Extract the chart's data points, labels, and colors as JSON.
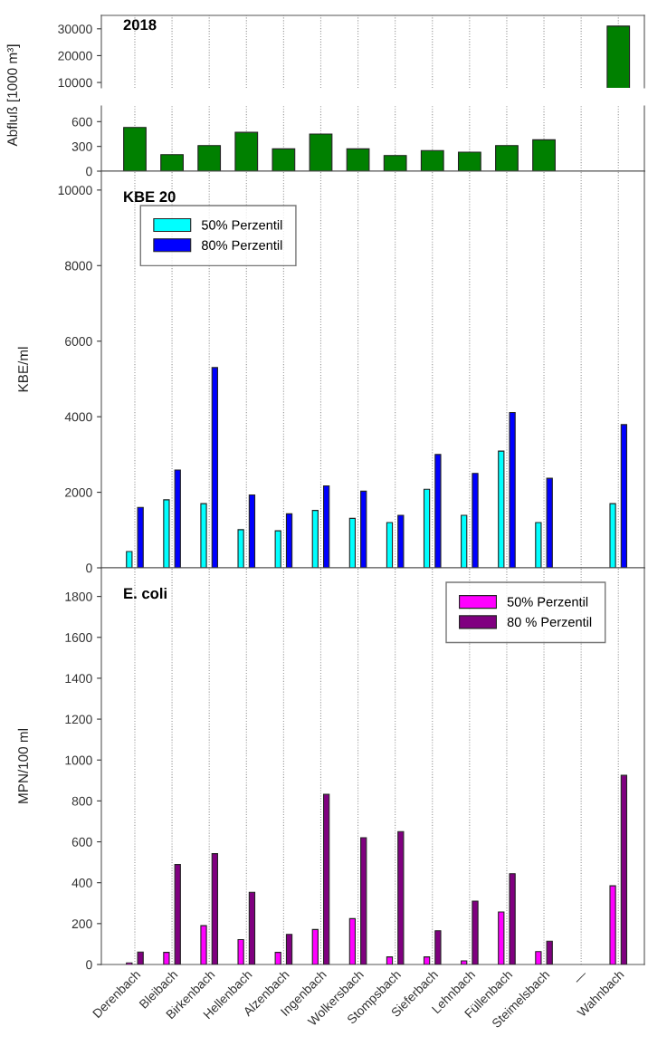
{
  "chart_data": [
    {
      "type": "bar",
      "title": "2018",
      "ylabel": "Abfluß [1000 m³]",
      "categories": [
        null,
        null,
        null,
        null,
        null,
        null,
        null,
        null,
        null,
        null,
        null,
        null,
        null,
        null
      ],
      "series": [
        {
          "color": "#008000",
          "values": [
            null,
            null,
            null,
            null,
            null,
            null,
            null,
            null,
            null,
            null,
            null,
            null,
            null,
            31000
          ]
        }
      ],
      "ylim": [
        8000,
        35000
      ],
      "yticks": [
        10000,
        20000,
        30000
      ],
      "grid": "x",
      "tick_labels": "y",
      "legend": false
    },
    {
      "type": "bar",
      "categories": [
        null,
        null,
        null,
        null,
        null,
        null,
        null,
        null,
        null,
        null,
        null,
        null,
        null,
        null
      ],
      "series": [
        {
          "color": "#008000",
          "values": [
            530,
            200,
            310,
            470,
            270,
            450,
            270,
            190,
            250,
            230,
            310,
            380,
            null,
            null
          ]
        }
      ],
      "ylim": [
        0,
        790
      ],
      "yticks": [
        0,
        300,
        600
      ],
      "grid": "x",
      "tick_labels": "y",
      "legend": false
    },
    {
      "type": "bar",
      "title": "KBE 20",
      "ylabel": "KBE/ml",
      "categories": [
        null,
        null,
        null,
        null,
        null,
        null,
        null,
        null,
        null,
        null,
        null,
        null,
        null,
        null
      ],
      "series": [
        {
          "name": "50% Perzentil",
          "color": "#00ffff",
          "values": [
            430,
            1800,
            1700,
            1010,
            980,
            1520,
            1310,
            1200,
            2080,
            1390,
            3090,
            1200,
            null,
            1700
          ]
        },
        {
          "name": "80% Perzentil",
          "color": "#0000ff",
          "values": [
            1600,
            2590,
            5300,
            1930,
            1430,
            2170,
            2030,
            1390,
            3000,
            2500,
            4110,
            2370,
            null,
            3790
          ]
        }
      ],
      "ylim": [
        0,
        10500
      ],
      "yticks": [
        0,
        2000,
        4000,
        6000,
        8000,
        10000
      ],
      "grid": "x",
      "tick_labels": "y",
      "legend": "top left"
    },
    {
      "type": "bar",
      "title": "E. coli",
      "ylabel": "MPN/100 ml",
      "categories": [
        "Derenbach",
        "Bleibach",
        "Birkenbach",
        "Hellenbach",
        "Alzenbach",
        "Ingenbach",
        "Wolkersbach",
        "Stompsbach",
        "Sieferbach",
        "Lehnbach",
        "Füllenbach",
        "Steimelsbach",
        "—",
        "Wahnbach"
      ],
      "series": [
        {
          "name": "50% Perzentil",
          "color": "#ff00ff",
          "values": [
            8,
            59,
            190,
            122,
            59,
            171,
            224,
            37,
            37,
            18,
            257,
            63,
            null,
            385
          ]
        },
        {
          "name": "80 % Perzentil",
          "color": "#800080",
          "values": [
            61,
            489,
            542,
            353,
            147,
            832,
            620,
            650,
            165,
            310,
            444,
            114,
            null,
            925
          ]
        }
      ],
      "ylim": [
        0,
        1940
      ],
      "yticks": [
        0,
        200,
        400,
        600,
        800,
        1000,
        1200,
        1400,
        1600,
        1800
      ],
      "grid": "x",
      "legend": "top right"
    }
  ]
}
